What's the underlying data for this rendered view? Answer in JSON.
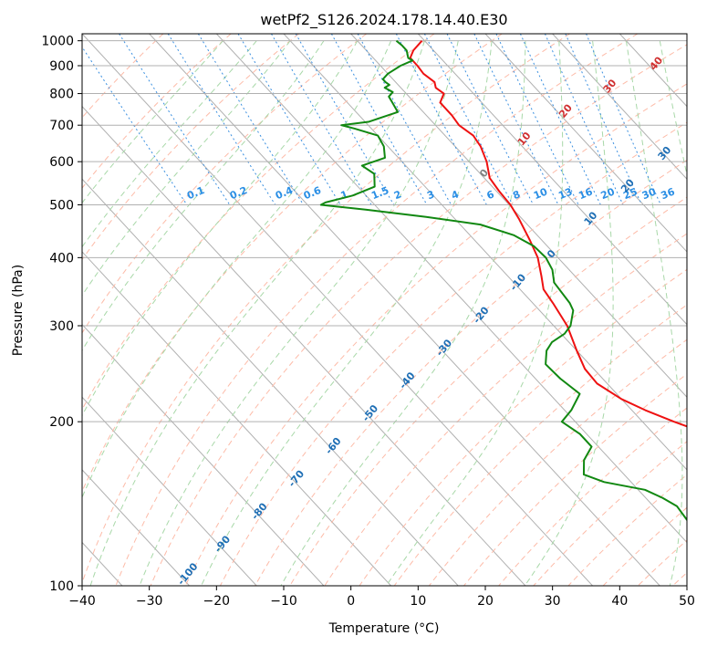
{
  "chart_data": {
    "type": "line",
    "diagram": "skew-T log-P",
    "title": "wetPf2_S126.2024.178.14.40.E30",
    "xlabel": "Temperature (°C)",
    "ylabel": "Pressure (hPa)",
    "xlim": [
      -40,
      50
    ],
    "ylim": [
      1030,
      100
    ],
    "y_scale": "log",
    "x_ticks": [
      -40,
      -30,
      -20,
      -10,
      0,
      10,
      20,
      30,
      40,
      50
    ],
    "x_tick_labels": [
      "−40",
      "−30",
      "−20",
      "−10",
      "0",
      "10",
      "20",
      "30",
      "40",
      "50"
    ],
    "y_ticks": [
      1000,
      900,
      800,
      700,
      600,
      500,
      400,
      300,
      200,
      100
    ],
    "y_tick_labels": [
      "1000",
      "900",
      "800",
      "700",
      "600",
      "500",
      "400",
      "300",
      "200",
      "100"
    ],
    "grid": true,
    "skew_deg_per_log10_pressure": 75,
    "colors": {
      "temperature": "#ee1111",
      "dewpoint": "#118811",
      "isotherm": "#b0b0b0",
      "dry_adiabat": "#fdbba8",
      "moist_adiabat": "#a8d8a8",
      "mixing_ratio": "#3a8fe0",
      "dry_adiabat_label": "#1f6fb5",
      "mixing_ratio_label": "#2b8fe5",
      "moist_adiabat_label": "#d03030"
    },
    "series": [
      {
        "key": "temperature",
        "points": [
          [
            1000,
            9.6
          ],
          [
            960,
            7.0
          ],
          [
            930,
            5.5
          ],
          [
            900,
            5.5
          ],
          [
            870,
            5.3
          ],
          [
            840,
            5.8
          ],
          [
            820,
            5.2
          ],
          [
            800,
            5.6
          ],
          [
            770,
            3.8
          ],
          [
            730,
            3.8
          ],
          [
            700,
            3.5
          ],
          [
            670,
            4.2
          ],
          [
            640,
            3.8
          ],
          [
            600,
            2.6
          ],
          [
            560,
            0.8
          ],
          [
            530,
            0.4
          ],
          [
            500,
            0.2
          ],
          [
            470,
            -0.5
          ],
          [
            430,
            -1.8
          ],
          [
            400,
            -3.0
          ],
          [
            370,
            -5.0
          ],
          [
            350,
            -6.5
          ],
          [
            330,
            -7.0
          ],
          [
            300,
            -8.0
          ],
          [
            270,
            -10.0
          ],
          [
            250,
            -11.3
          ],
          [
            235,
            -11.5
          ],
          [
            220,
            -10.0
          ],
          [
            210,
            -8.0
          ],
          [
            200,
            -5.3
          ],
          [
            190,
            -2.0
          ],
          [
            180,
            2.0
          ],
          [
            170,
            5.0
          ],
          [
            160,
            8.0
          ],
          [
            150,
            10.5
          ],
          [
            140,
            14.5
          ],
          [
            130,
            17.5
          ],
          [
            120,
            20.0
          ],
          [
            110,
            22.0
          ],
          [
            100,
            25.0
          ]
        ]
      },
      {
        "key": "dewpoint",
        "points": [
          [
            1000,
            5.8
          ],
          [
            980,
            6.0
          ],
          [
            960,
            6.0
          ],
          [
            930,
            5.2
          ],
          [
            920,
            5.5
          ],
          [
            900,
            3.0
          ],
          [
            870,
            0.0
          ],
          [
            850,
            -1.5
          ],
          [
            840,
            -1.5
          ],
          [
            830,
            -1.3
          ],
          [
            820,
            -2.4
          ],
          [
            805,
            -1.8
          ],
          [
            790,
            -3.0
          ],
          [
            770,
            -3.3
          ],
          [
            740,
            -3.8
          ],
          [
            710,
            -9.5
          ],
          [
            700,
            -14.0
          ],
          [
            690,
            -12.5
          ],
          [
            670,
            -10.0
          ],
          [
            640,
            -10.6
          ],
          [
            610,
            -12.0
          ],
          [
            590,
            -16.5
          ],
          [
            570,
            -15.8
          ],
          [
            540,
            -17.5
          ],
          [
            520,
            -22.0
          ],
          [
            505,
            -27.0
          ],
          [
            500,
            -28.0
          ],
          [
            490,
            -22.0
          ],
          [
            475,
            -14.0
          ],
          [
            460,
            -7.0
          ],
          [
            440,
            -3.5
          ],
          [
            420,
            -2.0
          ],
          [
            400,
            -1.8
          ],
          [
            380,
            -2.5
          ],
          [
            360,
            -4.0
          ],
          [
            330,
            -4.5
          ],
          [
            320,
            -5.0
          ],
          [
            300,
            -7.5
          ],
          [
            290,
            -9.5
          ],
          [
            280,
            -12.5
          ],
          [
            270,
            -14.5
          ],
          [
            255,
            -16.5
          ],
          [
            240,
            -16.3
          ],
          [
            225,
            -15.5
          ],
          [
            210,
            -19.0
          ],
          [
            200,
            -22.0
          ],
          [
            190,
            -21.0
          ],
          [
            180,
            -21.0
          ],
          [
            170,
            -24.0
          ],
          [
            160,
            -26.0
          ],
          [
            155,
            -24.0
          ],
          [
            150,
            -19.0
          ],
          [
            145,
            -17.5
          ],
          [
            140,
            -16.5
          ],
          [
            130,
            -17.0
          ],
          [
            120,
            -18.0
          ],
          [
            110,
            -19.0
          ],
          [
            100,
            -20.0
          ]
        ]
      }
    ],
    "dry_adiabat_labels": [
      "-100",
      "-90",
      "-80",
      "-70",
      "-60",
      "-50",
      "-40",
      "-30",
      "-20",
      "-10",
      "0",
      "10",
      "20",
      "30",
      "40"
    ],
    "moist_adiabat_labels": [
      "0",
      "10",
      "20",
      "30",
      "40"
    ],
    "mixing_ratio_labels": [
      "0.1",
      "0.2",
      "0.4",
      "0.6",
      "1",
      "1.5",
      "2",
      "3",
      "4",
      "6",
      "8",
      "10",
      "13",
      "16",
      "20",
      "25",
      "30",
      "36"
    ],
    "mixing_ratio_values": [
      0.1,
      0.2,
      0.4,
      0.6,
      1,
      1.5,
      2,
      3,
      4,
      6,
      8,
      10,
      13,
      16,
      20,
      25,
      30,
      36
    ]
  }
}
